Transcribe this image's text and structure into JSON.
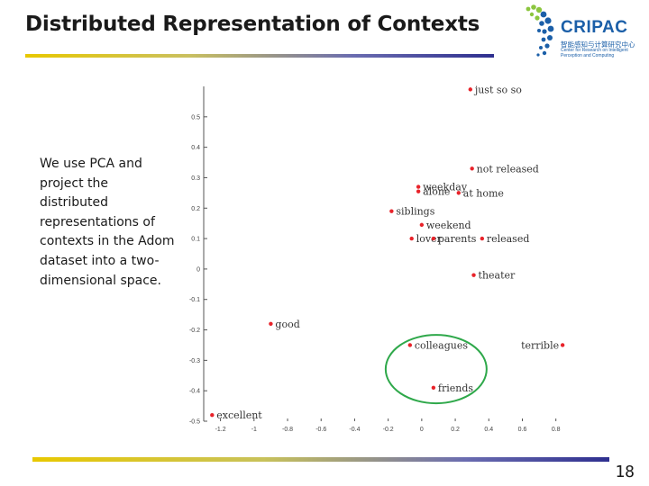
{
  "slide": {
    "title": "Distributed Representation of Contexts",
    "body": "We use PCA and project the distributed representations of contexts in the Adom dataset into a two-dimensional space.",
    "page_number": "18"
  },
  "logo": {
    "name": "CRIPAC",
    "subtitle_cn": "智能感知与计算研究中心",
    "subtitle_en_1": "Center for Research on Intelligent",
    "subtitle_en_2": "Perception and Computing",
    "color": "#1b5fa8",
    "accent": "#8cc63f"
  },
  "colors": {
    "point": "#e8232a",
    "highlight": "#2ea84a",
    "accent_yellow": "#e8c800",
    "accent_navy": "#2e2f8f"
  },
  "chart_data": {
    "type": "scatter",
    "title": "",
    "xlabel": "",
    "ylabel": "",
    "xlim": [
      -1.3,
      0.85
    ],
    "ylim": [
      -0.5,
      0.6
    ],
    "xticks": [
      "-1.2",
      "-1",
      "-0.8",
      "-0.6",
      "-0.4",
      "-0.2",
      "0",
      "0.2",
      "0.4",
      "0.6",
      "0.8"
    ],
    "yticks": [
      "-0.5",
      "-0.4",
      "-0.3",
      "-0.2",
      "-0.1",
      "0",
      "0.1",
      "0.2",
      "0.3",
      "0.4",
      "0.5"
    ],
    "points": [
      {
        "label": "just so so",
        "x": 0.29,
        "y": 0.59
      },
      {
        "label": "not released",
        "x": 0.3,
        "y": 0.33
      },
      {
        "label": "weekday",
        "x": -0.02,
        "y": 0.27
      },
      {
        "label": "alone",
        "x": -0.02,
        "y": 0.255
      },
      {
        "label": "at home",
        "x": 0.22,
        "y": 0.25
      },
      {
        "label": "siblings",
        "x": -0.18,
        "y": 0.19
      },
      {
        "label": "weekend",
        "x": 0.0,
        "y": 0.145
      },
      {
        "label": "lover",
        "x": -0.06,
        "y": 0.1
      },
      {
        "label": "parents",
        "x": 0.07,
        "y": 0.1
      },
      {
        "label": "released",
        "x": 0.36,
        "y": 0.1
      },
      {
        "label": "theater",
        "x": 0.31,
        "y": -0.02
      },
      {
        "label": "good",
        "x": -0.9,
        "y": -0.18
      },
      {
        "label": "colleagues",
        "x": -0.07,
        "y": -0.25
      },
      {
        "label": "terrible",
        "x": 0.84,
        "y": -0.25
      },
      {
        "label": "friends",
        "x": 0.07,
        "y": -0.39
      },
      {
        "label": "excellent",
        "x": -1.25,
        "y": -0.48
      }
    ],
    "grid": false,
    "highlight": [
      "colleagues",
      "friends"
    ]
  }
}
